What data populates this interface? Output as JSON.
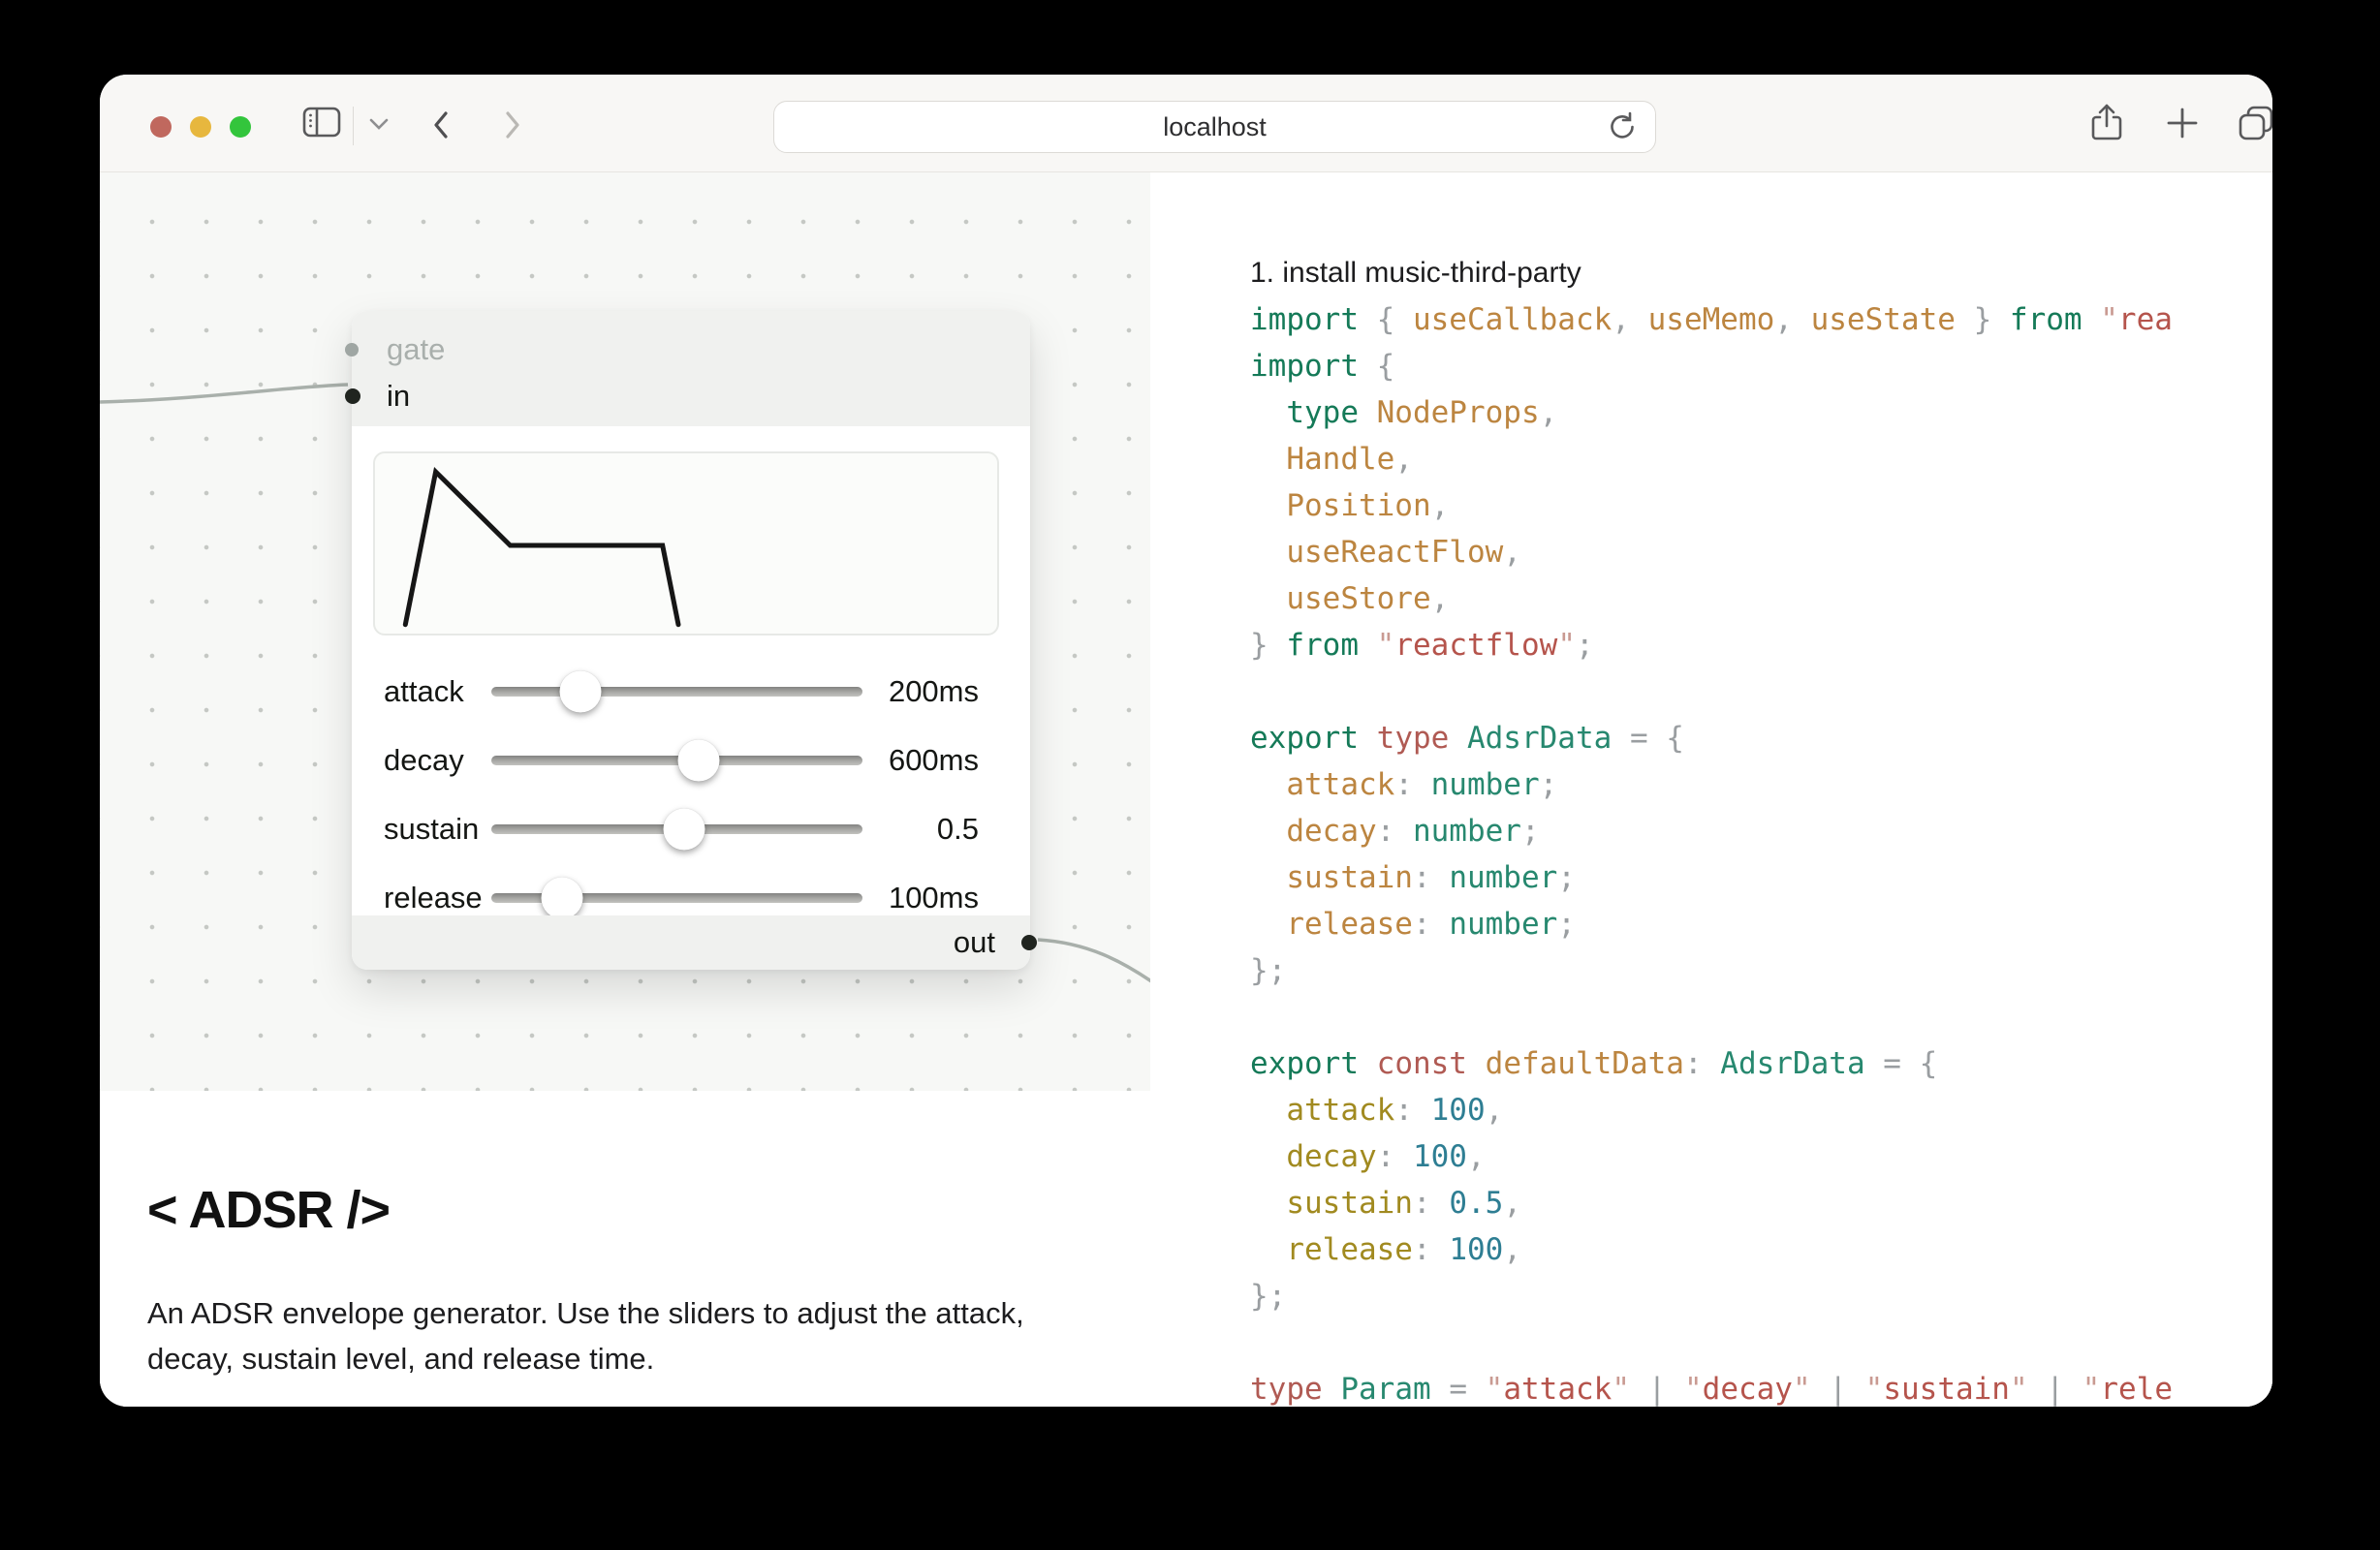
{
  "browser": {
    "url": "localhost",
    "traffic_colors": {
      "close": "#c0685e",
      "minimize": "#e7b73e",
      "zoom": "#33c53c"
    },
    "icons": [
      "sidebar-toggle",
      "tab-group-chevron",
      "back",
      "forward",
      "reload",
      "share",
      "new-tab",
      "tab-overview"
    ]
  },
  "node": {
    "inputs": [
      {
        "label": "gate",
        "active": false
      },
      {
        "label": "in",
        "active": true
      }
    ],
    "output": {
      "label": "out"
    },
    "envelope_points": [
      [
        0.048,
        0.93
      ],
      [
        0.096,
        0.1
      ],
      [
        0.214,
        0.5
      ],
      [
        0.455,
        0.5
      ],
      [
        0.48,
        0.93
      ]
    ],
    "envelope_color": "#161616",
    "sliders": [
      {
        "param": "attack",
        "value_label": "200ms",
        "percent": 24
      },
      {
        "param": "decay",
        "value_label": "600ms",
        "percent": 56
      },
      {
        "param": "sustain",
        "value_label": "0.5",
        "percent": 52
      },
      {
        "param": "release",
        "value_label": "100ms",
        "percent": 19
      }
    ]
  },
  "doc": {
    "heading": "< ADSR />",
    "description": "An ADSR envelope generator. Use the sliders to adjust the attack, decay, sustain level, and release time."
  },
  "code": {
    "colors": {
      "plain": "#1c1c1e",
      "kw": "#157a58",
      "decl": "#b05a53",
      "id": "#bc8540",
      "prop": "#a18a20",
      "type": "#27886f",
      "num": "#2e7e93",
      "str": "#b5544c",
      "qt": "#c99a92",
      "p": "#9a9ea1"
    },
    "lines": [
      {
        "sans": true,
        "spans": [
          [
            "plain",
            "1. install music-third-party"
          ]
        ]
      },
      {
        "spans": [
          [
            "kw",
            "import"
          ],
          [
            "p",
            " { "
          ],
          [
            "id",
            "useCallback"
          ],
          [
            "p",
            ", "
          ],
          [
            "id",
            "useMemo"
          ],
          [
            "p",
            ", "
          ],
          [
            "id",
            "useState"
          ],
          [
            "p",
            " } "
          ],
          [
            "kw",
            "from"
          ],
          [
            "p",
            " "
          ],
          [
            "qt",
            "\""
          ],
          [
            "str",
            "rea"
          ]
        ]
      },
      {
        "spans": [
          [
            "kw",
            "import"
          ],
          [
            "p",
            " {"
          ]
        ]
      },
      {
        "spans": [
          [
            "p",
            "  "
          ],
          [
            "kw",
            "type"
          ],
          [
            "id",
            " NodeProps"
          ],
          [
            "p",
            ","
          ]
        ]
      },
      {
        "spans": [
          [
            "p",
            "  "
          ],
          [
            "id",
            "Handle"
          ],
          [
            "p",
            ","
          ]
        ]
      },
      {
        "spans": [
          [
            "p",
            "  "
          ],
          [
            "id",
            "Position"
          ],
          [
            "p",
            ","
          ]
        ]
      },
      {
        "spans": [
          [
            "p",
            "  "
          ],
          [
            "id",
            "useReactFlow"
          ],
          [
            "p",
            ","
          ]
        ]
      },
      {
        "spans": [
          [
            "p",
            "  "
          ],
          [
            "id",
            "useStore"
          ],
          [
            "p",
            ","
          ]
        ]
      },
      {
        "spans": [
          [
            "p",
            "} "
          ],
          [
            "kw",
            "from"
          ],
          [
            "p",
            " "
          ],
          [
            "qt",
            "\""
          ],
          [
            "str",
            "reactflow"
          ],
          [
            "qt",
            "\""
          ],
          [
            "p",
            ";"
          ]
        ]
      },
      {
        "spans": []
      },
      {
        "spans": [
          [
            "kw",
            "export"
          ],
          [
            "p",
            " "
          ],
          [
            "decl",
            "type"
          ],
          [
            "p",
            " "
          ],
          [
            "type",
            "AdsrData"
          ],
          [
            "p",
            " = {"
          ]
        ]
      },
      {
        "spans": [
          [
            "p",
            "  "
          ],
          [
            "id",
            "attack"
          ],
          [
            "p",
            ": "
          ],
          [
            "type",
            "number"
          ],
          [
            "p",
            ";"
          ]
        ]
      },
      {
        "spans": [
          [
            "p",
            "  "
          ],
          [
            "id",
            "decay"
          ],
          [
            "p",
            ": "
          ],
          [
            "type",
            "number"
          ],
          [
            "p",
            ";"
          ]
        ]
      },
      {
        "spans": [
          [
            "p",
            "  "
          ],
          [
            "id",
            "sustain"
          ],
          [
            "p",
            ": "
          ],
          [
            "type",
            "number"
          ],
          [
            "p",
            ";"
          ]
        ]
      },
      {
        "spans": [
          [
            "p",
            "  "
          ],
          [
            "id",
            "release"
          ],
          [
            "p",
            ": "
          ],
          [
            "type",
            "number"
          ],
          [
            "p",
            ";"
          ]
        ]
      },
      {
        "spans": [
          [
            "p",
            "};"
          ]
        ]
      },
      {
        "spans": []
      },
      {
        "spans": [
          [
            "kw",
            "export"
          ],
          [
            "p",
            " "
          ],
          [
            "decl",
            "const"
          ],
          [
            "p",
            " "
          ],
          [
            "id",
            "defaultData"
          ],
          [
            "p",
            ": "
          ],
          [
            "type",
            "AdsrData"
          ],
          [
            "p",
            " = {"
          ]
        ]
      },
      {
        "spans": [
          [
            "p",
            "  "
          ],
          [
            "prop",
            "attack"
          ],
          [
            "p",
            ": "
          ],
          [
            "num",
            "100"
          ],
          [
            "p",
            ","
          ]
        ]
      },
      {
        "spans": [
          [
            "p",
            "  "
          ],
          [
            "prop",
            "decay"
          ],
          [
            "p",
            ": "
          ],
          [
            "num",
            "100"
          ],
          [
            "p",
            ","
          ]
        ]
      },
      {
        "spans": [
          [
            "p",
            "  "
          ],
          [
            "prop",
            "sustain"
          ],
          [
            "p",
            ": "
          ],
          [
            "num",
            "0.5"
          ],
          [
            "p",
            ","
          ]
        ]
      },
      {
        "spans": [
          [
            "p",
            "  "
          ],
          [
            "prop",
            "release"
          ],
          [
            "p",
            ": "
          ],
          [
            "num",
            "100"
          ],
          [
            "p",
            ","
          ]
        ]
      },
      {
        "spans": [
          [
            "p",
            "};"
          ]
        ]
      },
      {
        "spans": []
      },
      {
        "spans": [
          [
            "decl",
            "type"
          ],
          [
            "p",
            " "
          ],
          [
            "type",
            "Param"
          ],
          [
            "p",
            " = "
          ],
          [
            "qt",
            "\""
          ],
          [
            "str",
            "attack"
          ],
          [
            "qt",
            "\""
          ],
          [
            "p",
            " | "
          ],
          [
            "qt",
            "\""
          ],
          [
            "str",
            "decay"
          ],
          [
            "qt",
            "\""
          ],
          [
            "p",
            " | "
          ],
          [
            "qt",
            "\""
          ],
          [
            "str",
            "sustain"
          ],
          [
            "qt",
            "\""
          ],
          [
            "p",
            " | "
          ],
          [
            "qt",
            "\""
          ],
          [
            "str",
            "rele"
          ]
        ]
      }
    ]
  }
}
